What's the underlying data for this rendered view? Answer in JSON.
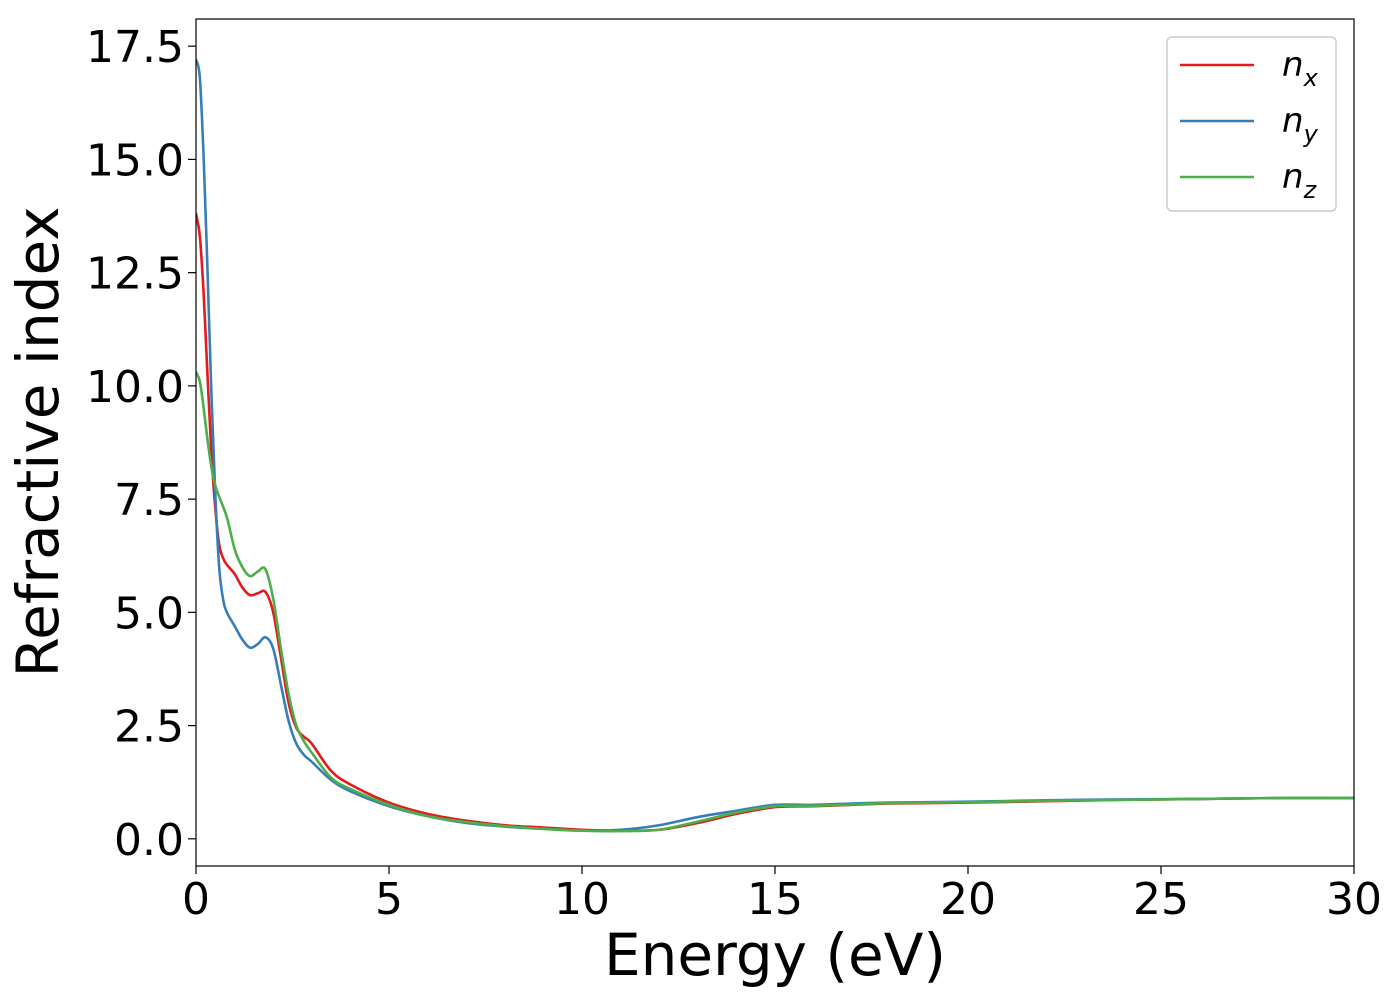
{
  "chart_data": {
    "type": "line",
    "title": "",
    "xlabel": "Energy (eV)",
    "ylabel": "Refractive index",
    "xlim": [
      0,
      30
    ],
    "ylim": [
      -0.6,
      18.1
    ],
    "xticks": [
      "0",
      "5",
      "10",
      "15",
      "20",
      "25",
      "30"
    ],
    "yticks": [
      "0.0",
      "2.5",
      "5.0",
      "7.5",
      "10.0",
      "12.5",
      "15.0",
      "17.5"
    ],
    "grid": false,
    "legend_position": "top-right",
    "series": [
      {
        "name": "n",
        "name_sub": "x",
        "color": "#e41a1c",
        "points": [
          [
            0.0,
            13.8
          ],
          [
            0.1,
            13.3
          ],
          [
            0.2,
            12.0
          ],
          [
            0.3,
            10.2
          ],
          [
            0.4,
            8.5
          ],
          [
            0.5,
            7.3
          ],
          [
            0.6,
            6.5
          ],
          [
            0.7,
            6.2
          ],
          [
            0.8,
            6.05
          ],
          [
            1.0,
            5.85
          ],
          [
            1.2,
            5.55
          ],
          [
            1.4,
            5.38
          ],
          [
            1.6,
            5.42
          ],
          [
            1.8,
            5.45
          ],
          [
            2.0,
            5.0
          ],
          [
            2.2,
            4.0
          ],
          [
            2.4,
            3.0
          ],
          [
            2.6,
            2.45
          ],
          [
            2.8,
            2.25
          ],
          [
            3.0,
            2.1
          ],
          [
            3.5,
            1.5
          ],
          [
            4.0,
            1.2
          ],
          [
            5.0,
            0.8
          ],
          [
            6.0,
            0.55
          ],
          [
            7.0,
            0.4
          ],
          [
            8.0,
            0.3
          ],
          [
            9.0,
            0.25
          ],
          [
            10.0,
            0.2
          ],
          [
            11.0,
            0.18
          ],
          [
            12.0,
            0.2
          ],
          [
            13.0,
            0.35
          ],
          [
            14.0,
            0.55
          ],
          [
            15.0,
            0.7
          ],
          [
            16.0,
            0.72
          ],
          [
            17.0,
            0.75
          ],
          [
            18.0,
            0.78
          ],
          [
            20.0,
            0.8
          ],
          [
            22.0,
            0.83
          ],
          [
            24.0,
            0.86
          ],
          [
            26.0,
            0.88
          ],
          [
            28.0,
            0.9
          ],
          [
            30.0,
            0.9
          ]
        ]
      },
      {
        "name": "n",
        "name_sub": "y",
        "color": "#377eb8",
        "points": [
          [
            0.0,
            17.2
          ],
          [
            0.1,
            16.8
          ],
          [
            0.2,
            15.0
          ],
          [
            0.3,
            12.5
          ],
          [
            0.4,
            9.8
          ],
          [
            0.5,
            7.6
          ],
          [
            0.6,
            6.0
          ],
          [
            0.7,
            5.3
          ],
          [
            0.8,
            5.0
          ],
          [
            1.0,
            4.7
          ],
          [
            1.2,
            4.4
          ],
          [
            1.4,
            4.22
          ],
          [
            1.6,
            4.3
          ],
          [
            1.8,
            4.45
          ],
          [
            2.0,
            4.2
          ],
          [
            2.2,
            3.4
          ],
          [
            2.4,
            2.6
          ],
          [
            2.6,
            2.1
          ],
          [
            2.8,
            1.85
          ],
          [
            3.0,
            1.7
          ],
          [
            3.5,
            1.3
          ],
          [
            4.0,
            1.05
          ],
          [
            5.0,
            0.72
          ],
          [
            6.0,
            0.5
          ],
          [
            7.0,
            0.35
          ],
          [
            8.0,
            0.27
          ],
          [
            9.0,
            0.22
          ],
          [
            10.0,
            0.18
          ],
          [
            11.0,
            0.2
          ],
          [
            12.0,
            0.3
          ],
          [
            13.0,
            0.48
          ],
          [
            14.0,
            0.62
          ],
          [
            15.0,
            0.75
          ],
          [
            16.0,
            0.75
          ],
          [
            17.0,
            0.78
          ],
          [
            18.0,
            0.8
          ],
          [
            20.0,
            0.82
          ],
          [
            22.0,
            0.85
          ],
          [
            24.0,
            0.87
          ],
          [
            26.0,
            0.88
          ],
          [
            28.0,
            0.9
          ],
          [
            30.0,
            0.9
          ]
        ]
      },
      {
        "name": "n",
        "name_sub": "z",
        "color": "#4daf4a",
        "points": [
          [
            0.0,
            10.3
          ],
          [
            0.1,
            10.1
          ],
          [
            0.2,
            9.5
          ],
          [
            0.3,
            8.8
          ],
          [
            0.4,
            8.2
          ],
          [
            0.5,
            7.8
          ],
          [
            0.6,
            7.55
          ],
          [
            0.8,
            7.1
          ],
          [
            1.0,
            6.4
          ],
          [
            1.2,
            6.0
          ],
          [
            1.4,
            5.8
          ],
          [
            1.6,
            5.9
          ],
          [
            1.8,
            5.95
          ],
          [
            2.0,
            5.3
          ],
          [
            2.2,
            4.2
          ],
          [
            2.4,
            3.2
          ],
          [
            2.6,
            2.5
          ],
          [
            2.8,
            2.15
          ],
          [
            3.0,
            1.9
          ],
          [
            3.5,
            1.35
          ],
          [
            4.0,
            1.1
          ],
          [
            5.0,
            0.75
          ],
          [
            6.0,
            0.5
          ],
          [
            7.0,
            0.37
          ],
          [
            8.0,
            0.28
          ],
          [
            9.0,
            0.22
          ],
          [
            10.0,
            0.18
          ],
          [
            11.0,
            0.17
          ],
          [
            12.0,
            0.2
          ],
          [
            13.0,
            0.38
          ],
          [
            14.0,
            0.58
          ],
          [
            15.0,
            0.72
          ],
          [
            16.0,
            0.73
          ],
          [
            17.0,
            0.76
          ],
          [
            18.0,
            0.79
          ],
          [
            20.0,
            0.81
          ],
          [
            22.0,
            0.84
          ],
          [
            24.0,
            0.86
          ],
          [
            26.0,
            0.88
          ],
          [
            28.0,
            0.9
          ],
          [
            30.0,
            0.9
          ]
        ]
      }
    ]
  }
}
